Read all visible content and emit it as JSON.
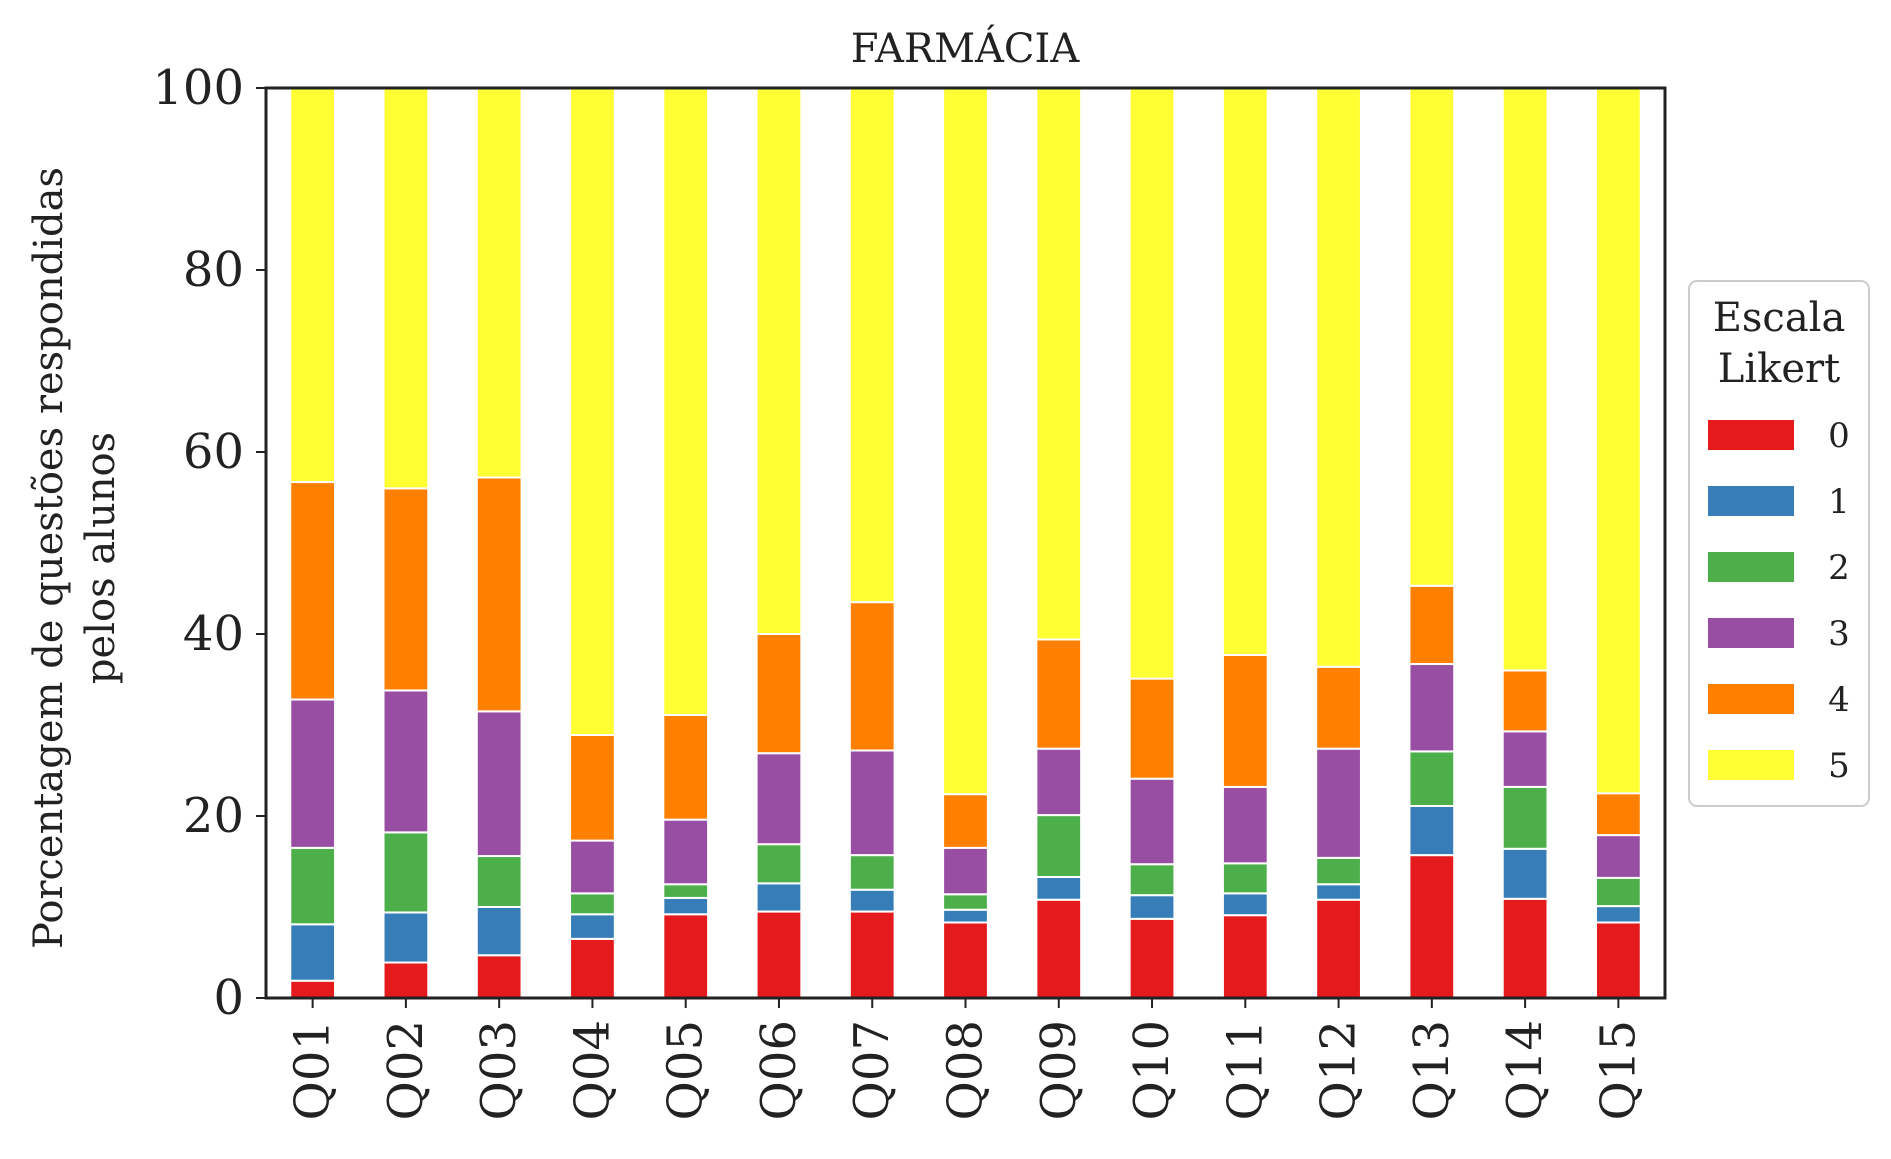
{
  "chart_data": {
    "type": "bar",
    "stacked": true,
    "title": "FARMÁCIA",
    "ylabel_lines": [
      "Porcentagem de questões respondidas",
      "pelos alunos"
    ],
    "xlabel": "",
    "ylim": [
      0,
      100
    ],
    "yticks": [
      0,
      20,
      40,
      60,
      80,
      100
    ],
    "grid": false,
    "legend": {
      "title_lines": [
        "Escala",
        "Likert"
      ],
      "position": "right"
    },
    "categories": [
      "Q01",
      "Q02",
      "Q03",
      "Q04",
      "Q05",
      "Q06",
      "Q07",
      "Q08",
      "Q09",
      "Q10",
      "Q11",
      "Q12",
      "Q13",
      "Q14",
      "Q15"
    ],
    "series": [
      {
        "name": "0",
        "color": "#e41a1c",
        "values": [
          1.9,
          3.9,
          4.7,
          6.5,
          9.2,
          9.5,
          9.5,
          8.3,
          10.8,
          8.7,
          9.1,
          10.8,
          15.7,
          10.9,
          8.3
        ]
      },
      {
        "name": "1",
        "color": "#377eb8",
        "values": [
          6.2,
          5.5,
          5.3,
          2.7,
          1.8,
          3.1,
          2.4,
          1.4,
          2.5,
          2.6,
          2.4,
          1.7,
          5.4,
          5.5,
          1.8
        ]
      },
      {
        "name": "2",
        "color": "#4daf4a",
        "values": [
          8.4,
          8.8,
          5.6,
          2.3,
          1.5,
          4.3,
          3.8,
          1.7,
          6.8,
          3.4,
          3.3,
          2.9,
          6.0,
          6.8,
          3.1
        ]
      },
      {
        "name": "3",
        "color": "#984ea3",
        "values": [
          16.3,
          15.6,
          15.9,
          5.8,
          7.1,
          10.0,
          11.5,
          5.1,
          7.3,
          9.4,
          8.4,
          12.0,
          9.6,
          6.1,
          4.7
        ]
      },
      {
        "name": "4",
        "color": "#ff7f00",
        "values": [
          23.9,
          22.2,
          25.7,
          11.6,
          11.5,
          13.1,
          16.3,
          5.9,
          12.0,
          11.0,
          14.5,
          9.0,
          8.6,
          6.7,
          4.6
        ]
      },
      {
        "name": "5",
        "color": "#ffff33",
        "values": [
          43.3,
          44.0,
          42.8,
          71.1,
          68.9,
          60.0,
          56.5,
          77.6,
          60.6,
          64.9,
          62.3,
          63.6,
          54.7,
          64.0,
          77.5
        ]
      }
    ]
  }
}
